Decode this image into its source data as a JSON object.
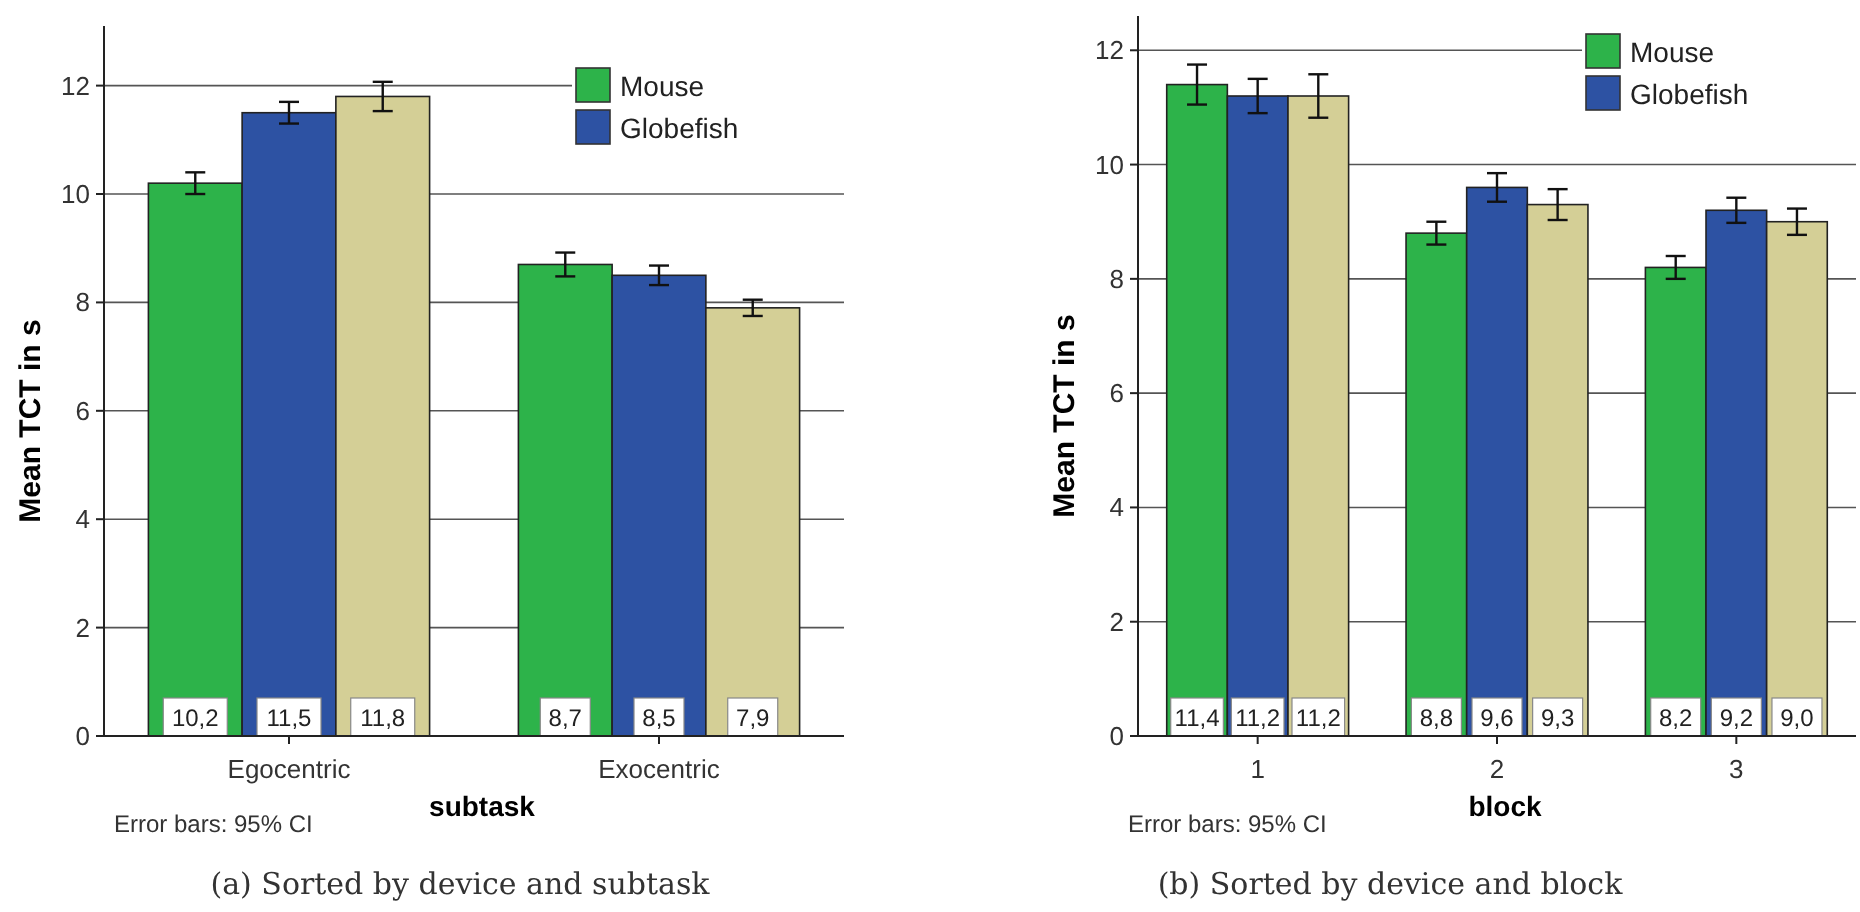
{
  "chart_data": [
    {
      "type": "bar",
      "xlabel": "subtask",
      "ylabel": "Mean TCT in s",
      "categories": [
        "Egocentric",
        "Exocentric"
      ],
      "ylim": [
        0,
        13.1
      ],
      "yticks": [
        0,
        2,
        4,
        6,
        8,
        10,
        12
      ],
      "grid": "y",
      "legend": "top right",
      "series": [
        {
          "name": "Mouse",
          "color": "#2db34a",
          "values": [
            10.2,
            8.7
          ],
          "errors": [
            0.2,
            0.22
          ],
          "value_labels": [
            "10,2",
            "8,7"
          ]
        },
        {
          "name": "Globefish",
          "color": "#2d52a3",
          "values": [
            11.5,
            8.5
          ],
          "errors": [
            0.2,
            0.18
          ],
          "value_labels": [
            "11,5",
            "8,5"
          ]
        },
        {
          "color": "#d4cf96",
          "values": [
            11.8,
            7.9
          ],
          "errors": [
            0.27,
            0.15
          ],
          "value_labels": [
            "11,8",
            "7,9"
          ]
        }
      ],
      "annotations": [
        "Error bars: 95% CI",
        "(a) Sorted by device and subtask"
      ]
    },
    {
      "type": "bar",
      "xlabel": "block",
      "ylabel": "Mean TCT in s",
      "categories": [
        "1",
        "2",
        "3"
      ],
      "ylim": [
        0,
        12.6
      ],
      "yticks": [
        0,
        2,
        4,
        6,
        8,
        10,
        12
      ],
      "grid": "y",
      "legend": "top right",
      "series": [
        {
          "name": "Mouse",
          "color": "#2db34a",
          "values": [
            11.4,
            8.8,
            8.2
          ],
          "errors": [
            0.35,
            0.2,
            0.2
          ],
          "value_labels": [
            "11,4",
            "8,8",
            "8,2"
          ]
        },
        {
          "name": "Globefish",
          "color": "#2d52a3",
          "values": [
            11.2,
            9.6,
            9.2
          ],
          "errors": [
            0.3,
            0.25,
            0.22
          ],
          "value_labels": [
            "11,2",
            "9,6",
            "9,2"
          ]
        },
        {
          "color": "#d4cf96",
          "values": [
            11.2,
            9.3,
            9.0
          ],
          "errors": [
            0.38,
            0.27,
            0.23
          ],
          "value_labels": [
            "11,2",
            "9,3",
            "9,0"
          ]
        }
      ],
      "annotations": [
        "Error bars: 95% CI",
        "(b) Sorted by device and block"
      ]
    }
  ]
}
